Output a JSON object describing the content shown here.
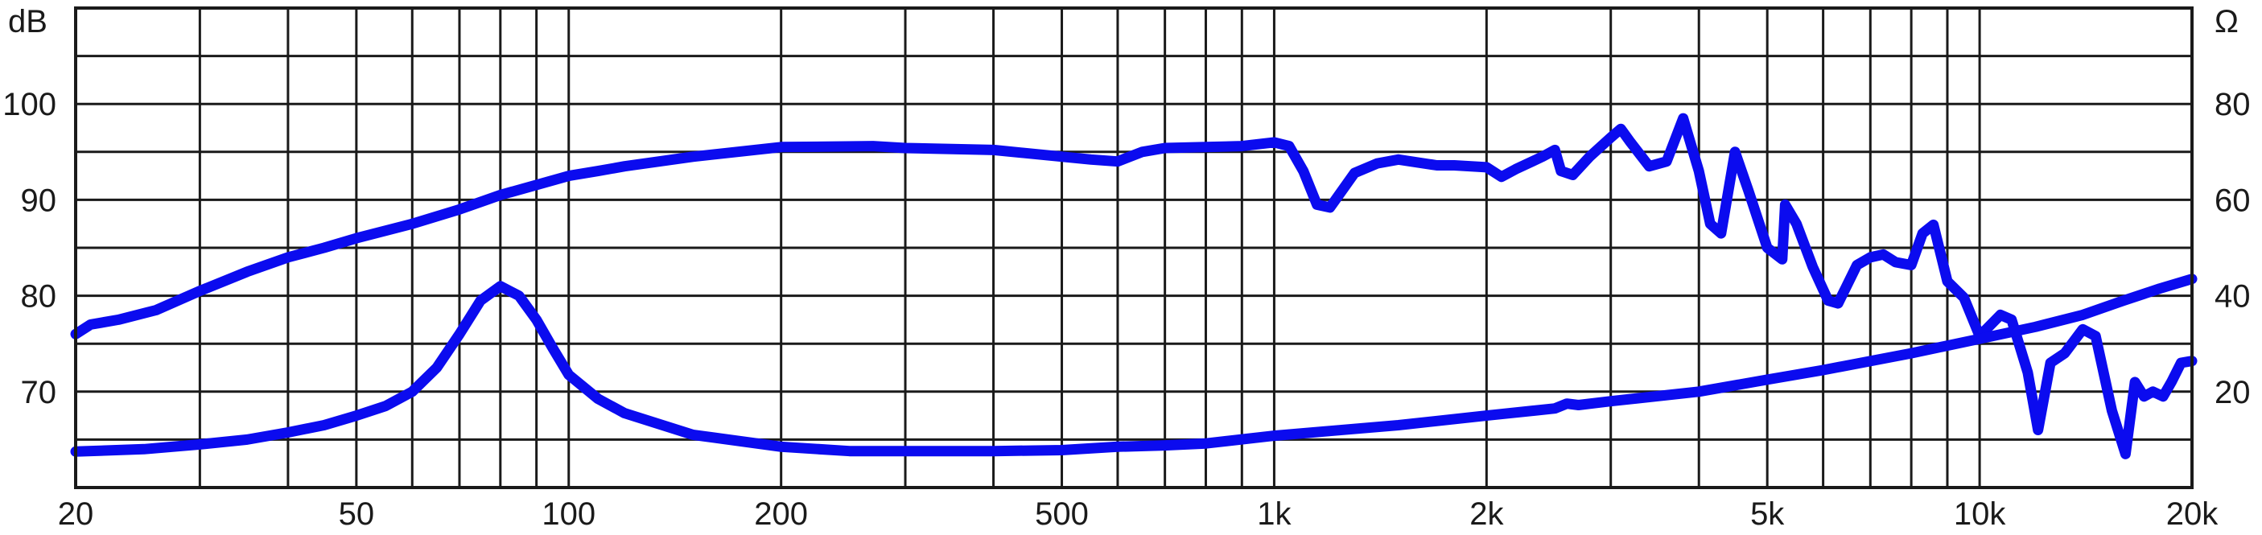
{
  "chart_data": {
    "type": "line",
    "title": "",
    "left_unit": "dB",
    "right_unit": "Ω",
    "x_scale": "log",
    "xlim": [
      20,
      20000
    ],
    "x_ticks": [
      {
        "value": 20,
        "label": "20"
      },
      {
        "value": 50,
        "label": "50"
      },
      {
        "value": 100,
        "label": "100"
      },
      {
        "value": 200,
        "label": "200"
      },
      {
        "value": 500,
        "label": "500"
      },
      {
        "value": 1000,
        "label": "1k"
      },
      {
        "value": 2000,
        "label": "2k"
      },
      {
        "value": 5000,
        "label": "5k"
      },
      {
        "value": 10000,
        "label": "10k"
      },
      {
        "value": 20000,
        "label": "20k"
      }
    ],
    "ylim_left": [
      60,
      110
    ],
    "y_ticks_left": [
      {
        "value": 70,
        "label": "70"
      },
      {
        "value": 80,
        "label": "80"
      },
      {
        "value": 90,
        "label": "90"
      },
      {
        "value": 100,
        "label": "100"
      }
    ],
    "ylim_right": [
      0,
      100
    ],
    "y_ticks_right": [
      {
        "value": 20,
        "label": "20"
      },
      {
        "value": 40,
        "label": "40"
      },
      {
        "value": 60,
        "label": "60"
      },
      {
        "value": 80,
        "label": "80"
      }
    ],
    "grid": true,
    "line_color": "#0b0bef",
    "grid_color": "#1a1a1a",
    "series": [
      {
        "axis": "left",
        "x": [
          20,
          21,
          23,
          26,
          30,
          35,
          40,
          45,
          50,
          60,
          70,
          80,
          100,
          110,
          120,
          150,
          200,
          270,
          300,
          400,
          550,
          600,
          650,
          700,
          800,
          900,
          1000,
          1050,
          1100,
          1150,
          1200,
          1300,
          1400,
          1500,
          1700,
          1800,
          2000,
          2100,
          2200,
          2400,
          2500,
          2550,
          2650,
          2800,
          3000,
          3100,
          3200,
          3400,
          3600,
          3800,
          4000,
          4150,
          4300,
          4500,
          4700,
          5000,
          5250,
          5300,
          5500,
          5800,
          6100,
          6300,
          6700,
          7000,
          7300,
          7600,
          8000,
          8300,
          8600,
          9000,
          9500,
          10000,
          10700,
          11100,
          11700,
          12100,
          12600,
          13200,
          14000,
          14600,
          15400,
          16100,
          16600,
          17100,
          17600,
          18200,
          18700,
          19300,
          20000
        ],
        "y": [
          76,
          77,
          77.5,
          78.5,
          80.5,
          82.5,
          84,
          85,
          86,
          87.5,
          89,
          90.5,
          92.5,
          93,
          93.5,
          94.5,
          95.5,
          95.6,
          95.4,
          95.2,
          94.2,
          94,
          95,
          95.4,
          95.5,
          95.6,
          96,
          95.6,
          93,
          89.5,
          89.2,
          92.8,
          93.8,
          94.2,
          93.6,
          93.6,
          93.4,
          92.4,
          93.2,
          94.5,
          95.2,
          93,
          92.6,
          94.5,
          96.5,
          97.4,
          96,
          93.5,
          94,
          98.5,
          93,
          87.5,
          86.5,
          95,
          91,
          85,
          83.8,
          89.5,
          87.5,
          83,
          79.5,
          79.2,
          83.2,
          84,
          84.3,
          83.5,
          83.2,
          86.5,
          87.4,
          81.5,
          79.8,
          75.8,
          78,
          77.5,
          72,
          66,
          73,
          74,
          76.5,
          75.8,
          68,
          63.5,
          71,
          69.5,
          70,
          69.5,
          71,
          73,
          73.2
        ]
      },
      {
        "axis": "right",
        "x": [
          20,
          25,
          30,
          35,
          40,
          45,
          50,
          55,
          60,
          65,
          70,
          75,
          80,
          85,
          90,
          95,
          100,
          110,
          120,
          150,
          200,
          250,
          300,
          400,
          500,
          600,
          700,
          800,
          1000,
          1200,
          1500,
          2000,
          2500,
          2600,
          2700,
          3000,
          4000,
          5000,
          6000,
          8000,
          10000,
          12000,
          14000,
          16000,
          18000,
          20000
        ],
        "y": [
          7.5,
          8,
          9,
          10,
          11.5,
          13,
          15,
          17,
          20,
          25,
          32,
          39,
          42,
          40,
          35,
          29,
          23.5,
          18.5,
          15.5,
          11,
          8.5,
          7.6,
          7.6,
          7.6,
          7.8,
          8.5,
          8.8,
          9.2,
          10.8,
          11.8,
          13,
          15,
          16.5,
          17.5,
          17.2,
          18,
          20,
          22.5,
          24.5,
          28,
          31,
          33.5,
          36,
          39,
          41.5,
          43.5
        ]
      }
    ]
  }
}
